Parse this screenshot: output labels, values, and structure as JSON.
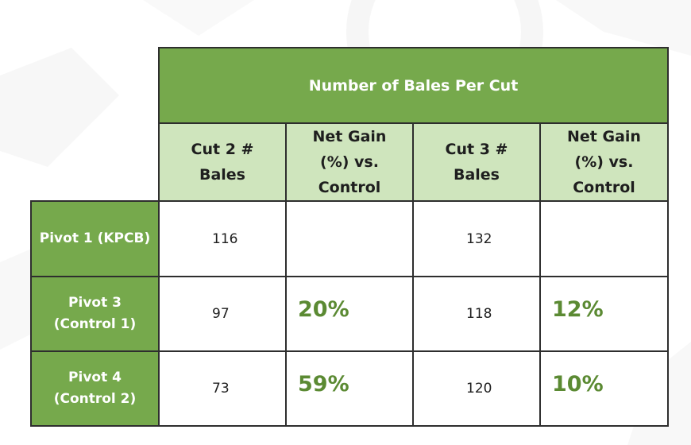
{
  "chart_data": {
    "type": "table",
    "title": "Number of Bales Per Cut",
    "columns": [
      "Cut 2 # Bales",
      "Net Gain (%) vs. Control",
      "Cut 3 # Bales",
      "Net Gain (%) vs. Control"
    ],
    "column_lines": [
      [
        "Cut 2 #",
        "Bales"
      ],
      [
        "Net Gain",
        "(%) vs.",
        "Control"
      ],
      [
        "Cut 3 #",
        "Bales"
      ],
      [
        "Net Gain",
        "(%) vs.",
        "Control"
      ]
    ],
    "rows": [
      {
        "label_lines": [
          "Pivot 1 (KPCB)"
        ],
        "cells": [
          "116",
          "",
          "132",
          ""
        ]
      },
      {
        "label_lines": [
          "Pivot 3",
          "(Control 1)"
        ],
        "cells": [
          "97",
          "20%",
          "118",
          "12%"
        ]
      },
      {
        "label_lines": [
          "Pivot 4",
          "(Control 2)"
        ],
        "cells": [
          "73",
          "59%",
          "120",
          "10%"
        ]
      }
    ]
  },
  "colors": {
    "header_green": "#76a94c",
    "subheader_light_green": "#cfe5bd",
    "gain_text_green": "#5b8a33",
    "border": "#2e2e2e"
  }
}
